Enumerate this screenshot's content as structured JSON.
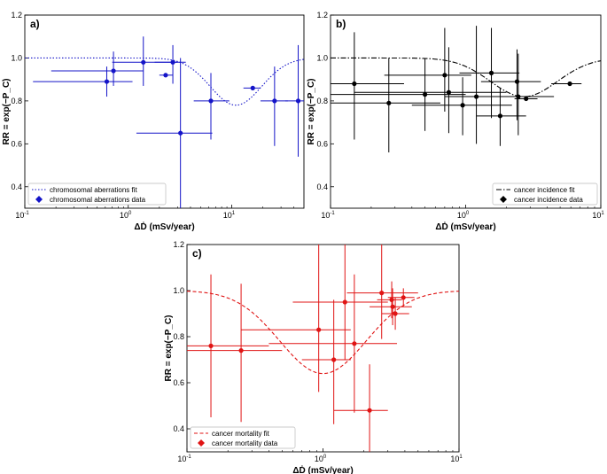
{
  "chart_data": [
    {
      "panel": "a)",
      "type": "scatter",
      "color": "#1414c8",
      "fit_style": "dotted",
      "xscale": "log",
      "xlim": [
        0.1,
        50
      ],
      "ylim": [
        0.3,
        1.2
      ],
      "xticks": [
        {
          "v": 0.1,
          "label": "10",
          "sup": "-1"
        },
        {
          "v": 1,
          "label": "10",
          "sup": "0"
        },
        {
          "v": 10,
          "label": "10",
          "sup": "1"
        }
      ],
      "yticks": [
        {
          "v": 0.4,
          "label": "0.4"
        },
        {
          "v": 0.6,
          "label": "0.6"
        },
        {
          "v": 0.8,
          "label": "0.8"
        },
        {
          "v": 1.0,
          "label": "1.0"
        },
        {
          "v": 1.2,
          "label": "1.2"
        }
      ],
      "xlabel": "ΔḊ (mSv/year)",
      "ylabel": "RR = exp(−P_C)",
      "fit_label": "chromosomal aberrations fit",
      "data_label": "chromosomal aberrations data",
      "legend_position": "bottom-left",
      "fit": {
        "dip_center": 11,
        "dip_width_decades": 0.35,
        "dip_depth": 0.22
      },
      "points": [
        {
          "x": 0.62,
          "y": 0.89,
          "xerr": [
            0.12,
            1.1
          ],
          "yerr": [
            0.82,
            0.96
          ]
        },
        {
          "x": 0.72,
          "y": 0.94,
          "xerr": [
            0.18,
            1.4
          ],
          "yerr": [
            0.87,
            1.03
          ]
        },
        {
          "x": 1.4,
          "y": 0.98,
          "xerr": [
            0.7,
            3.0
          ],
          "yerr": [
            0.87,
            1.1
          ]
        },
        {
          "x": 2.3,
          "y": 0.92,
          "xerr": [
            2.0,
            2.7
          ],
          "yerr": [
            0.91,
            0.93
          ]
        },
        {
          "x": 2.7,
          "y": 0.98,
          "xerr": [
            1.8,
            3.6
          ],
          "yerr": [
            0.88,
            1.06
          ]
        },
        {
          "x": 3.2,
          "y": 0.65,
          "xerr": [
            1.2,
            6.5
          ],
          "yerr": [
            0.3,
            1.0
          ]
        },
        {
          "x": 6.3,
          "y": 0.8,
          "xerr": [
            4.3,
            9.5
          ],
          "yerr": [
            0.62,
            0.93
          ]
        },
        {
          "x": 16,
          "y": 0.86,
          "xerr": [
            13,
            19
          ],
          "yerr": [
            0.85,
            0.87
          ]
        },
        {
          "x": 26,
          "y": 0.8,
          "xerr": [
            19,
            35
          ],
          "yerr": [
            0.59,
            0.96
          ]
        },
        {
          "x": 44,
          "y": 0.8,
          "xerr": [
            33,
            50
          ],
          "yerr": [
            0.54,
            1.06
          ]
        }
      ]
    },
    {
      "panel": "b)",
      "type": "scatter",
      "color": "#000000",
      "fit_style": "dashdot",
      "xscale": "log",
      "xlim": [
        0.1,
        10
      ],
      "ylim": [
        0.3,
        1.2
      ],
      "xticks": [
        {
          "v": 0.1,
          "label": "10",
          "sup": "-1"
        },
        {
          "v": 1,
          "label": "10",
          "sup": "0"
        },
        {
          "v": 10,
          "label": "10",
          "sup": "1"
        }
      ],
      "yticks": [
        {
          "v": 0.4,
          "label": "0.4"
        },
        {
          "v": 0.6,
          "label": "0.6"
        },
        {
          "v": 0.8,
          "label": "0.8"
        },
        {
          "v": 1.0,
          "label": "1.0"
        },
        {
          "v": 1.2,
          "label": "1.2"
        }
      ],
      "xlabel": "ΔḊ (mSv/year)",
      "ylabel": "RR = exp(−P_C)",
      "fit_label": "cancer incidence fit",
      "data_label": "cancer incidence data",
      "legend_position": "bottom-right",
      "fit": {
        "dip_center": 2.7,
        "dip_width_decades": 0.35,
        "dip_depth": 0.18
      },
      "points": [
        {
          "x": 0.15,
          "y": 0.88,
          "xerr": [
            0.1,
            0.35
          ],
          "yerr": [
            0.62,
            1.12
          ]
        },
        {
          "x": 0.27,
          "y": 0.79,
          "xerr": [
            0.1,
            0.65
          ],
          "yerr": [
            0.56,
            1.0
          ]
        },
        {
          "x": 0.5,
          "y": 0.83,
          "xerr": [
            0.1,
            1.0
          ],
          "yerr": [
            0.66,
            1.0
          ]
        },
        {
          "x": 0.7,
          "y": 0.92,
          "xerr": [
            0.25,
            1.1
          ],
          "yerr": [
            0.75,
            1.14
          ]
        },
        {
          "x": 0.75,
          "y": 0.84,
          "xerr": [
            0.15,
            2.0
          ],
          "yerr": [
            0.65,
            1.05
          ]
        },
        {
          "x": 0.95,
          "y": 0.78,
          "xerr": [
            0.4,
            2.2
          ],
          "yerr": [
            0.64,
            0.91
          ]
        },
        {
          "x": 1.2,
          "y": 0.82,
          "xerr": [
            0.7,
            2.6
          ],
          "yerr": [
            0.6,
            1.15
          ]
        },
        {
          "x": 1.55,
          "y": 0.93,
          "xerr": [
            0.9,
            2.5
          ],
          "yerr": [
            0.72,
            1.14
          ]
        },
        {
          "x": 1.8,
          "y": 0.73,
          "xerr": [
            1.2,
            2.8
          ],
          "yerr": [
            0.59,
            0.86
          ]
        },
        {
          "x": 2.4,
          "y": 0.89,
          "xerr": [
            1.3,
            3.6
          ],
          "yerr": [
            0.71,
            1.04
          ]
        },
        {
          "x": 2.45,
          "y": 0.82,
          "xerr": [
            0.8,
            4.5
          ],
          "yerr": [
            0.64,
            1.02
          ]
        },
        {
          "x": 2.8,
          "y": 0.81,
          "xerr": [
            2.3,
            3.4
          ],
          "yerr": [
            0.8,
            0.82
          ]
        },
        {
          "x": 5.9,
          "y": 0.88,
          "xerr": [
            4.3,
            7.2
          ],
          "yerr": [
            0.87,
            0.89
          ]
        }
      ]
    },
    {
      "panel": "c)",
      "type": "scatter",
      "color": "#e01414",
      "fit_style": "dashed",
      "xscale": "log",
      "xlim": [
        0.1,
        10
      ],
      "ylim": [
        0.3,
        1.2
      ],
      "xticks": [
        {
          "v": 0.1,
          "label": "10",
          "sup": "-1"
        },
        {
          "v": 1,
          "label": "10",
          "sup": "0"
        },
        {
          "v": 10,
          "label": "10",
          "sup": "1"
        }
      ],
      "yticks": [
        {
          "v": 0.4,
          "label": "0.4"
        },
        {
          "v": 0.6,
          "label": "0.6"
        },
        {
          "v": 0.8,
          "label": "0.8"
        },
        {
          "v": 1.0,
          "label": "1.0"
        },
        {
          "v": 1.2,
          "label": "1.2"
        }
      ],
      "xlabel": "ΔḊ (mSv/year)",
      "ylabel": "RR = exp(−P_C)",
      "fit_label": "cancer mortality fit",
      "data_label": "cancer mortality data",
      "legend_position": "bottom-left",
      "fit": {
        "dip_center": 1.0,
        "dip_width_decades": 0.45,
        "dip_depth": 0.36
      },
      "points": [
        {
          "x": 0.15,
          "y": 0.76,
          "xerr": [
            0.1,
            0.4
          ],
          "yerr": [
            0.45,
            1.07
          ]
        },
        {
          "x": 0.25,
          "y": 0.74,
          "xerr": [
            0.1,
            0.5
          ],
          "yerr": [
            0.43,
            1.03
          ]
        },
        {
          "x": 0.93,
          "y": 0.83,
          "xerr": [
            0.25,
            1.6
          ],
          "yerr": [
            0.56,
            1.2
          ]
        },
        {
          "x": 1.2,
          "y": 0.7,
          "xerr": [
            0.7,
            1.6
          ],
          "yerr": [
            0.42,
            0.96
          ]
        },
        {
          "x": 1.45,
          "y": 0.95,
          "xerr": [
            0.6,
            3.0
          ],
          "yerr": [
            0.7,
            1.2
          ]
        },
        {
          "x": 1.7,
          "y": 0.77,
          "xerr": [
            0.4,
            3.5
          ],
          "yerr": [
            0.47,
            1.07
          ]
        },
        {
          "x": 2.2,
          "y": 0.48,
          "xerr": [
            1.2,
            3.0
          ],
          "yerr": [
            0.3,
            0.68
          ]
        },
        {
          "x": 2.7,
          "y": 0.99,
          "xerr": [
            1.5,
            5.0
          ],
          "yerr": [
            0.79,
            1.2
          ]
        },
        {
          "x": 3.2,
          "y": 0.96,
          "xerr": [
            2.5,
            3.8
          ],
          "yerr": [
            0.88,
            1.04
          ]
        },
        {
          "x": 3.25,
          "y": 0.93,
          "xerr": [
            2.2,
            4.5
          ],
          "yerr": [
            0.85,
            1.01
          ]
        },
        {
          "x": 3.4,
          "y": 0.9,
          "xerr": [
            2.7,
            4.3
          ],
          "yerr": [
            0.83,
            0.97
          ]
        },
        {
          "x": 3.9,
          "y": 0.97,
          "xerr": [
            3.0,
            4.7
          ],
          "yerr": [
            0.93,
            1.01
          ]
        }
      ]
    }
  ]
}
